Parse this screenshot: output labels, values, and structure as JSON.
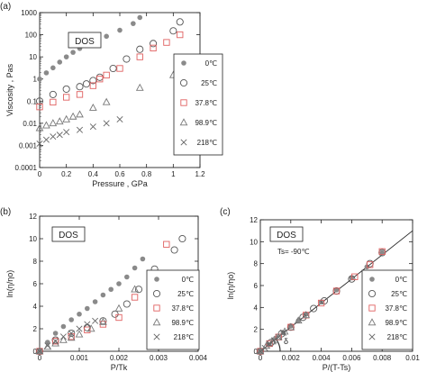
{
  "chart_data": [
    {
      "panel_label": "(a)",
      "type": "scatter",
      "tag": "DOS",
      "xlabel": "Pressure , GPa",
      "ylabel": "Viscosity , Pas",
      "xlim": [
        0,
        1.2
      ],
      "ylim": [
        0.0001,
        1000
      ],
      "yscale": "log",
      "xticks": [
        "0",
        "0.2",
        "0.4",
        "0.6",
        "0.8",
        "1",
        "1.2"
      ],
      "yticks": [
        "0.0001",
        "0.001",
        "0.01",
        "0.1",
        "1",
        "10",
        "100",
        "1000"
      ],
      "legend_position": "right",
      "series": [
        {
          "name": "0℃",
          "marker": "filled-circle",
          "color": "#8a8a8a",
          "x": [
            0.0,
            0.05,
            0.1,
            0.15,
            0.2,
            0.25,
            0.3,
            0.4,
            0.5,
            0.6,
            0.7,
            0.75
          ],
          "y": [
            1.0,
            1.9,
            3.2,
            5.8,
            10,
            16,
            24,
            45,
            85,
            160,
            320,
            600
          ]
        },
        {
          "name": "25℃",
          "marker": "open-circle",
          "color": "#555555",
          "x": [
            0.0,
            0.1,
            0.2,
            0.3,
            0.35,
            0.4,
            0.45,
            0.55,
            0.65,
            0.75,
            0.85,
            1.0,
            1.05
          ],
          "y": [
            0.1,
            0.2,
            0.35,
            0.45,
            0.6,
            0.85,
            1.2,
            3,
            8,
            22,
            40,
            150,
            380
          ]
        },
        {
          "name": "37.8℃",
          "marker": "open-square",
          "color": "#e06060",
          "x": [
            0.0,
            0.1,
            0.2,
            0.3,
            0.4,
            0.45,
            0.5,
            0.6,
            0.75,
            0.85,
            0.95,
            1.05
          ],
          "y": [
            0.055,
            0.09,
            0.15,
            0.2,
            0.5,
            1.0,
            1.5,
            3,
            10,
            25,
            45,
            100
          ]
        },
        {
          "name": "98.9℃",
          "marker": "open-triangle",
          "color": "#777777",
          "x": [
            0.0,
            0.05,
            0.1,
            0.15,
            0.2,
            0.25,
            0.3,
            0.4,
            0.5,
            0.75,
            1.0
          ],
          "y": [
            0.006,
            0.008,
            0.01,
            0.012,
            0.015,
            0.02,
            0.025,
            0.05,
            0.09,
            0.4,
            1.5
          ]
        },
        {
          "name": "218℃",
          "marker": "x",
          "color": "#666666",
          "x": [
            0.0,
            0.05,
            0.1,
            0.15,
            0.2,
            0.3,
            0.4,
            0.5,
            0.6
          ],
          "y": [
            0.0012,
            0.0018,
            0.0025,
            0.003,
            0.004,
            0.005,
            0.007,
            0.01,
            0.015
          ]
        }
      ]
    },
    {
      "panel_label": "(b)",
      "type": "scatter",
      "tag": "DOS",
      "xlabel": "P/Tk",
      "ylabel": "ln(η/ηo)",
      "xlim": [
        0,
        0.004
      ],
      "ylim": [
        0,
        12
      ],
      "xticks": [
        "0",
        "0.001",
        "0.002",
        "0.003",
        "0.004"
      ],
      "yticks": [
        "0",
        "2",
        "4",
        "6",
        "8",
        "10",
        "12"
      ],
      "legend_position": "bottom-right",
      "series": [
        {
          "name": "0℃",
          "marker": "filled-circle",
          "color": "#8a8a8a",
          "x": [
            0.0,
            0.0002,
            0.0004,
            0.0006,
            0.0008,
            0.001,
            0.0012,
            0.0014,
            0.0016,
            0.0018,
            0.002,
            0.0022,
            0.0024,
            0.0026
          ],
          "y": [
            0.0,
            0.8,
            1.6,
            2.2,
            2.8,
            3.3,
            3.8,
            4.4,
            5.0,
            5.5,
            6.0,
            6.6,
            7.4,
            8.2
          ]
        },
        {
          "name": "25℃",
          "marker": "open-circle",
          "color": "#555555",
          "x": [
            0.0,
            0.0004,
            0.0008,
            0.0012,
            0.0016,
            0.0019,
            0.0022,
            0.0025,
            0.0029,
            0.0034,
            0.0036
          ],
          "y": [
            0.0,
            1.0,
            1.6,
            2.1,
            2.7,
            3.3,
            4.2,
            5.5,
            7.3,
            9.0,
            10.0
          ]
        },
        {
          "name": "37.8℃",
          "marker": "open-square",
          "color": "#e06060",
          "x": [
            0.0,
            0.0004,
            0.0008,
            0.0012,
            0.0016,
            0.002,
            0.0024,
            0.0028,
            0.0032
          ],
          "y": [
            0.0,
            0.9,
            1.3,
            1.9,
            2.4,
            3.0,
            4.8,
            6.5,
            9.5
          ]
        },
        {
          "name": "98.9℃",
          "marker": "open-triangle",
          "color": "#777777",
          "x": [
            0.0,
            0.0002,
            0.0004,
            0.0006,
            0.0008,
            0.001,
            0.0013,
            0.0016,
            0.002,
            0.0024
          ],
          "y": [
            0.0,
            0.4,
            0.7,
            1.0,
            1.2,
            1.5,
            2.0,
            2.6,
            3.8,
            5.5
          ]
        },
        {
          "name": "218℃",
          "marker": "x",
          "color": "#666666",
          "x": [
            0.0,
            0.0002,
            0.0004,
            0.0006,
            0.0008,
            0.001,
            0.0012,
            0.0014
          ],
          "y": [
            0.0,
            0.5,
            0.9,
            1.3,
            1.6,
            2.0,
            2.4,
            2.7
          ]
        }
      ]
    },
    {
      "panel_label": "(c)",
      "type": "scatter",
      "tag": "DOS",
      "annotation": "Ts= -90℃",
      "angle_symbol": "δ",
      "xlabel": "P/(T-Ts)",
      "ylabel": "ln(η/ηo)",
      "xlim": [
        0,
        0.01
      ],
      "ylim": [
        0,
        12
      ],
      "xticks": [
        "0",
        "0.002",
        "0.004",
        "0.006",
        "0.008",
        "0.01"
      ],
      "yticks": [
        "0",
        "2",
        "4",
        "6",
        "8",
        "10",
        "12"
      ],
      "legend_position": "bottom-right",
      "fit_line": {
        "x": [
          0,
          0.01
        ],
        "y": [
          0,
          11
        ]
      },
      "series": [
        {
          "name": "0℃",
          "marker": "filled-circle",
          "color": "#8a8a8a",
          "x": [
            0.0,
            0.0005,
            0.001,
            0.0015,
            0.002,
            0.0025,
            0.003,
            0.004,
            0.005,
            0.006,
            0.007,
            0.008
          ],
          "y": [
            0.0,
            0.6,
            1.2,
            1.7,
            2.3,
            2.8,
            3.4,
            4.5,
            5.6,
            6.7,
            7.7,
            9.0
          ]
        },
        {
          "name": "25℃",
          "marker": "open-circle",
          "color": "#555555",
          "x": [
            0.0,
            0.0007,
            0.0014,
            0.002,
            0.0028,
            0.0035,
            0.0042,
            0.005,
            0.006,
            0.0072,
            0.008
          ],
          "y": [
            0.0,
            0.8,
            1.6,
            2.2,
            3.1,
            3.9,
            4.6,
            5.5,
            6.6,
            8.0,
            9.0
          ]
        },
        {
          "name": "37.8℃",
          "marker": "open-square",
          "color": "#e06060",
          "x": [
            0.0,
            0.0006,
            0.0012,
            0.002,
            0.003,
            0.004,
            0.005,
            0.0062,
            0.0072,
            0.008
          ],
          "y": [
            0.0,
            0.7,
            1.3,
            2.2,
            3.3,
            4.4,
            5.5,
            6.8,
            7.9,
            9.1
          ]
        },
        {
          "name": "98.9℃",
          "marker": "open-triangle",
          "color": "#777777",
          "x": [
            0.0,
            0.0004,
            0.0008,
            0.0012,
            0.0016,
            0.002,
            0.0025,
            0.003
          ],
          "y": [
            0.0,
            0.5,
            0.9,
            1.3,
            1.8,
            2.2,
            2.8,
            3.3
          ]
        },
        {
          "name": "218℃",
          "marker": "x",
          "color": "#666666",
          "x": [
            0.0,
            0.0003,
            0.0006,
            0.0009,
            0.0012,
            0.0015
          ],
          "y": [
            0.0,
            0.3,
            0.7,
            1.0,
            1.3,
            1.7
          ]
        }
      ]
    }
  ]
}
